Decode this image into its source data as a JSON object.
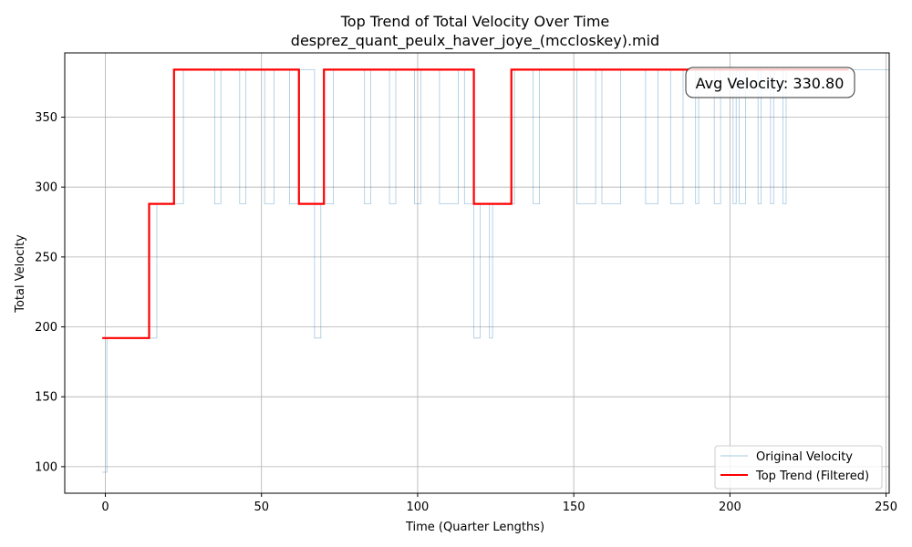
{
  "chart_data": {
    "type": "line",
    "title": "Top Trend of Total Velocity Over Time",
    "subtitle": "desprez_quant_peulx_haver_joye_(mccloskey).mid",
    "xlabel": "Time (Quarter Lengths)",
    "ylabel": "Total Velocity",
    "xlim": [
      -13,
      251
    ],
    "ylim": [
      81,
      396
    ],
    "xticks": [
      0,
      50,
      100,
      150,
      200,
      250
    ],
    "yticks": [
      100,
      150,
      200,
      250,
      300,
      350
    ],
    "grid": true,
    "legend_position": "bottom-right",
    "annotation": "Avg Velocity: 330.80",
    "series": [
      {
        "name": "Original Velocity",
        "color": "#1f77b4",
        "x": [
          -1,
          0.5,
          0.5,
          16.5,
          16.5,
          22,
          22,
          25,
          25,
          35,
          35,
          37,
          37,
          43,
          43,
          45,
          45,
          51,
          51,
          54,
          54,
          59,
          59,
          62,
          62,
          67,
          67,
          69,
          69,
          73,
          73,
          83,
          83,
          85,
          85,
          91,
          91,
          93,
          93,
          99,
          99,
          101,
          101,
          107,
          107,
          113,
          113,
          115,
          115,
          118,
          118,
          120,
          120,
          123,
          123,
          124,
          124,
          131,
          131,
          137,
          137,
          139,
          139,
          151,
          151,
          157,
          157,
          159,
          159,
          165,
          165,
          173,
          173,
          177,
          177,
          181,
          181,
          185,
          185,
          189,
          189,
          190,
          190,
          195,
          195,
          197,
          197,
          201,
          201,
          202,
          202,
          203,
          203,
          205,
          205,
          209,
          209,
          210,
          210,
          213,
          213,
          214,
          214,
          217,
          217,
          218,
          218,
          251
        ],
        "y": [
          96,
          96,
          192,
          192,
          288,
          288,
          288,
          288,
          384,
          384,
          288,
          288,
          384,
          384,
          288,
          288,
          384,
          384,
          288,
          288,
          384,
          384,
          288,
          288,
          384,
          384,
          192,
          192,
          288,
          288,
          384,
          384,
          288,
          288,
          384,
          384,
          288,
          288,
          384,
          384,
          288,
          288,
          384,
          384,
          288,
          288,
          384,
          384,
          288,
          288,
          192,
          192,
          288,
          288,
          192,
          192,
          288,
          288,
          384,
          384,
          288,
          288,
          384,
          384,
          288,
          288,
          384,
          384,
          288,
          288,
          384,
          384,
          288,
          288,
          384,
          384,
          288,
          288,
          384,
          384,
          288,
          288,
          384,
          384,
          288,
          288,
          384,
          384,
          288,
          288,
          384,
          384,
          288,
          288,
          384,
          384,
          288,
          288,
          384,
          384,
          288,
          288,
          384,
          384,
          288,
          288,
          384,
          384
        ]
      },
      {
        "name": "Top Trend (Filtered)",
        "color": "#ff0000",
        "x": [
          -1,
          14,
          14,
          22,
          22,
          62,
          62,
          70,
          70,
          118,
          118,
          130,
          130,
          238
        ],
        "y": [
          192,
          192,
          288,
          288,
          384,
          384,
          288,
          288,
          384,
          384,
          288,
          288,
          384,
          384
        ]
      }
    ]
  }
}
